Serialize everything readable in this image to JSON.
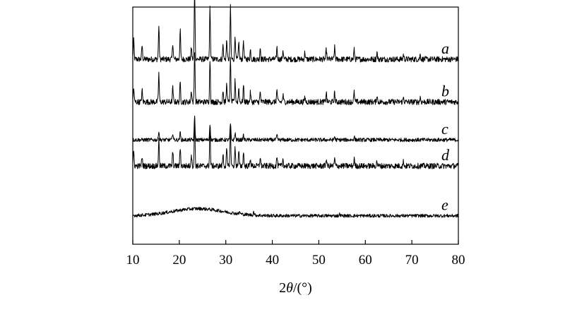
{
  "chart_data": {
    "type": "line",
    "title": "",
    "xlabel_parts": [
      "2",
      "θ",
      "/(°)"
    ],
    "ylabel": "",
    "xlim": [
      10,
      80
    ],
    "xticks": [
      10,
      20,
      30,
      40,
      50,
      60,
      70,
      80
    ],
    "grid": false,
    "series": [
      {
        "name": "a",
        "baseline": 0.78,
        "noise": 0.012,
        "peaks": [
          [
            10.2,
            0.08
          ],
          [
            12.0,
            0.06
          ],
          [
            15.6,
            0.14
          ],
          [
            18.6,
            0.07
          ],
          [
            20.2,
            0.12
          ],
          [
            22.6,
            0.05
          ],
          [
            23.3,
            0.3
          ],
          [
            26.6,
            0.22
          ],
          [
            29.4,
            0.06
          ],
          [
            30.2,
            0.08
          ],
          [
            31.0,
            0.22
          ],
          [
            32.0,
            0.1
          ],
          [
            32.8,
            0.07
          ],
          [
            33.8,
            0.08
          ],
          [
            35.3,
            0.04
          ],
          [
            37.4,
            0.05
          ],
          [
            41.0,
            0.05
          ],
          [
            42.3,
            0.04
          ],
          [
            47.0,
            0.03
          ],
          [
            51.6,
            0.04
          ],
          [
            53.4,
            0.05
          ],
          [
            57.6,
            0.04
          ],
          [
            62.5,
            0.03
          ],
          [
            68.2,
            0.02
          ],
          [
            71.8,
            0.02
          ]
        ]
      },
      {
        "name": "b",
        "baseline": 0.6,
        "noise": 0.012,
        "peaks": [
          [
            10.2,
            0.06
          ],
          [
            12.0,
            0.05
          ],
          [
            15.6,
            0.12
          ],
          [
            18.6,
            0.06
          ],
          [
            20.2,
            0.08
          ],
          [
            22.6,
            0.05
          ],
          [
            23.3,
            0.22
          ],
          [
            26.6,
            0.18
          ],
          [
            29.4,
            0.05
          ],
          [
            30.2,
            0.08
          ],
          [
            31.0,
            0.18
          ],
          [
            32.0,
            0.09
          ],
          [
            32.8,
            0.06
          ],
          [
            33.8,
            0.07
          ],
          [
            35.3,
            0.04
          ],
          [
            37.4,
            0.04
          ],
          [
            41.0,
            0.05
          ],
          [
            42.3,
            0.03
          ],
          [
            47.0,
            0.02
          ],
          [
            51.6,
            0.04
          ],
          [
            53.4,
            0.04
          ],
          [
            57.6,
            0.04
          ],
          [
            62.5,
            0.03
          ],
          [
            68.2,
            0.02
          ],
          [
            71.8,
            0.02
          ]
        ]
      },
      {
        "name": "c",
        "baseline": 0.44,
        "noise": 0.008,
        "peaks": [
          [
            15.6,
            0.04
          ],
          [
            18.6,
            0.03
          ],
          [
            20.2,
            0.03
          ],
          [
            23.3,
            0.1
          ],
          [
            26.6,
            0.07
          ],
          [
            31.0,
            0.07
          ],
          [
            32.0,
            0.03
          ],
          [
            33.8,
            0.02
          ],
          [
            41.0,
            0.02
          ],
          [
            53.4,
            0.015
          ],
          [
            57.6,
            0.015
          ]
        ]
      },
      {
        "name": "d",
        "baseline": 0.33,
        "noise": 0.012,
        "peaks": [
          [
            10.2,
            0.06
          ],
          [
            12.0,
            0.04
          ],
          [
            15.6,
            0.11
          ],
          [
            18.6,
            0.06
          ],
          [
            20.2,
            0.08
          ],
          [
            22.6,
            0.05
          ],
          [
            23.3,
            0.2
          ],
          [
            26.6,
            0.15
          ],
          [
            29.4,
            0.05
          ],
          [
            30.2,
            0.07
          ],
          [
            31.0,
            0.16
          ],
          [
            32.0,
            0.08
          ],
          [
            32.8,
            0.06
          ],
          [
            33.8,
            0.06
          ],
          [
            35.3,
            0.03
          ],
          [
            37.4,
            0.04
          ],
          [
            41.0,
            0.04
          ],
          [
            42.3,
            0.03
          ],
          [
            51.6,
            0.03
          ],
          [
            53.4,
            0.03
          ],
          [
            57.6,
            0.03
          ],
          [
            62.5,
            0.02
          ],
          [
            68.2,
            0.02
          ]
        ]
      },
      {
        "name": "e",
        "baseline": 0.12,
        "noise": 0.007,
        "hump": [
          24.0,
          5.5,
          0.03
        ],
        "peaks": [
          [
            33.0,
            0.01
          ],
          [
            36.0,
            0.015
          ],
          [
            54.5,
            0.008
          ]
        ]
      }
    ]
  }
}
